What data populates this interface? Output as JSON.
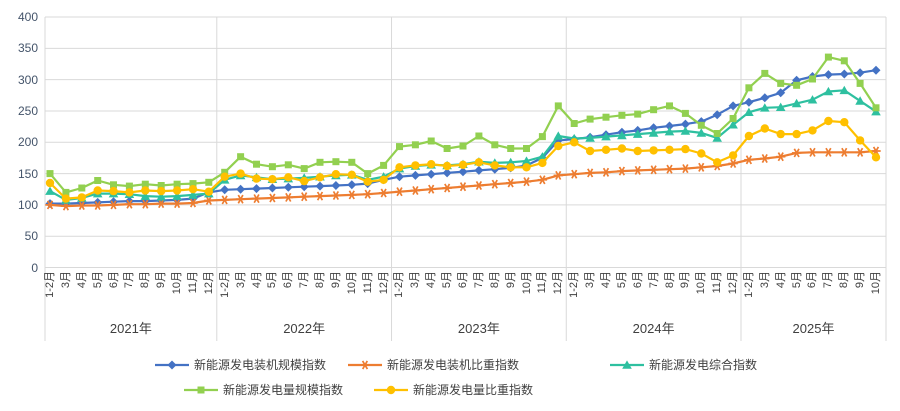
{
  "chart_data": {
    "type": "line",
    "title": "",
    "grid": true,
    "grid_color": "#D9D9D9",
    "legend_position": "bottom",
    "y_axis": {
      "min": 0,
      "max": 400,
      "step": 50,
      "tick_labels": [
        "0",
        "50",
        "100",
        "150",
        "200",
        "250",
        "300",
        "350",
        "400"
      ]
    },
    "x_axis": {
      "year_groups": [
        {
          "year_label": "2021年",
          "months": [
            "1-2月",
            "3月",
            "4月",
            "5月",
            "6月",
            "7月",
            "8月",
            "9月",
            "10月",
            "11月",
            "12月"
          ]
        },
        {
          "year_label": "2022年",
          "months": [
            "1-2月",
            "3月",
            "4月",
            "5月",
            "6月",
            "7月",
            "8月",
            "9月",
            "10月",
            "11月",
            "12月"
          ]
        },
        {
          "year_label": "2023年",
          "months": [
            "1-2月",
            "3月",
            "4月",
            "5月",
            "6月",
            "7月",
            "8月",
            "9月",
            "10月",
            "11月",
            "12月"
          ]
        },
        {
          "year_label": "2024年",
          "months": [
            "1-2月",
            "3月",
            "4月",
            "5月",
            "6月",
            "7月",
            "8月",
            "9月",
            "10月",
            "11月",
            "12月"
          ]
        },
        {
          "year_label": "2025年",
          "months": [
            "1-2月",
            "3月",
            "4月",
            "5月",
            "6月",
            "7月",
            "8月",
            "9月",
            "10月"
          ]
        }
      ]
    },
    "series": [
      {
        "name": "新能源发电装机规模指数",
        "color": "#4472C4",
        "marker": "diamond",
        "values": [
          102,
          102,
          103,
          104,
          105,
          106,
          106,
          107,
          108,
          110,
          120,
          124,
          125,
          126,
          127,
          128,
          129,
          130,
          131,
          132,
          134,
          140,
          145,
          147,
          149,
          151,
          153,
          155,
          157,
          159,
          163,
          175,
          203,
          205,
          208,
          212,
          216,
          219,
          223,
          226,
          229,
          233,
          244,
          258,
          264,
          271,
          279,
          299,
          305,
          308,
          309,
          311,
          315
        ]
      },
      {
        "name": "新能源发电装机比重指数",
        "color": "#ED7D31",
        "marker": "star",
        "values": [
          100,
          98,
          99,
          99,
          100,
          101,
          101,
          102,
          102,
          103,
          107,
          108,
          109,
          110,
          111,
          112,
          113,
          114,
          115,
          116,
          117,
          119,
          121,
          123,
          125,
          127,
          129,
          131,
          133,
          135,
          137,
          140,
          147,
          149,
          151,
          152,
          154,
          155,
          156,
          157,
          158,
          160,
          162,
          166,
          172,
          174,
          177,
          183,
          184,
          184,
          184,
          184,
          186
        ]
      },
      {
        "name": "新能源发电综合指数",
        "color": "#2EC0A0",
        "marker": "triangle",
        "values": [
          122,
          108,
          111,
          118,
          118,
          117,
          114,
          113,
          114,
          116,
          118,
          140,
          147,
          144,
          141,
          142,
          143,
          145,
          147,
          148,
          140,
          145,
          158,
          162,
          164,
          163,
          165,
          169,
          167,
          168,
          170,
          177,
          210,
          206,
          207,
          209,
          211,
          213,
          215,
          217,
          218,
          215,
          207,
          228,
          248,
          255,
          256,
          262,
          268,
          281,
          283,
          266,
          249
        ]
      },
      {
        "name": "新能源发电量规模指数",
        "color": "#92D050",
        "marker": "square",
        "values": [
          150,
          120,
          127,
          139,
          132,
          130,
          133,
          131,
          133,
          134,
          136,
          152,
          177,
          165,
          161,
          164,
          158,
          168,
          169,
          168,
          150,
          163,
          193,
          196,
          202,
          190,
          194,
          210,
          196,
          190,
          190,
          209,
          258,
          230,
          237,
          240,
          243,
          245,
          252,
          258,
          246,
          227,
          214,
          238,
          287,
          310,
          294,
          291,
          301,
          336,
          330,
          294,
          255
        ]
      },
      {
        "name": "新能源发电量比重指数",
        "color": "#FFC000",
        "marker": "circle",
        "values": [
          135,
          110,
          112,
          123,
          122,
          120,
          123,
          122,
          123,
          125,
          121,
          145,
          150,
          142,
          141,
          144,
          138,
          144,
          149,
          148,
          137,
          140,
          160,
          163,
          165,
          162,
          164,
          168,
          163,
          160,
          160,
          167,
          194,
          200,
          186,
          188,
          190,
          186,
          187,
          188,
          189,
          182,
          168,
          179,
          210,
          222,
          213,
          213,
          219,
          234,
          232,
          203,
          176
        ]
      }
    ],
    "legend_rows": [
      [
        0,
        1,
        2
      ],
      [
        3,
        4
      ]
    ]
  }
}
